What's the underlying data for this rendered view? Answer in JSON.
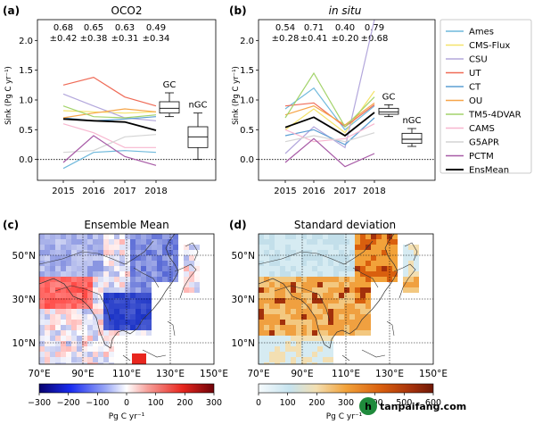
{
  "chart_data": [
    {
      "panel_label": "(a)",
      "title": "OCO2",
      "type": "line",
      "ylabel": "Sink (Pg C yr⁻¹)",
      "x": [
        2015,
        2016,
        2017,
        2018
      ],
      "ylim": [
        -0.35,
        2.35
      ],
      "yticks": [
        "0.0",
        "0.5",
        "1.0",
        "1.5",
        "2.0"
      ],
      "xticks": [
        "2015",
        "2016",
        "2017",
        "2018"
      ],
      "annotations_mean": [
        "0.68",
        "0.65",
        "0.63",
        "0.49"
      ],
      "annotations_sd": [
        "±0.42",
        "±0.38",
        "±0.31",
        "±0.34"
      ],
      "series": [
        {
          "name": "Ames",
          "color": "#6fb9dc",
          "values": [
            -0.15,
            0.12,
            0.15,
            0.12
          ]
        },
        {
          "name": "CMS-Flux",
          "color": "#f4e36a",
          "values": [
            0.82,
            0.8,
            0.78,
            0.8
          ]
        },
        {
          "name": "CSU",
          "color": "#b3a7dc",
          "values": [
            1.1,
            0.9,
            0.7,
            0.65
          ]
        },
        {
          "name": "UT",
          "color": "#ef6b57",
          "values": [
            1.25,
            1.38,
            1.05,
            0.9
          ]
        },
        {
          "name": "CT",
          "color": "#5b9fd4",
          "values": [
            0.7,
            0.65,
            0.68,
            0.72
          ]
        },
        {
          "name": "OU",
          "color": "#f6a54a",
          "values": [
            0.7,
            0.78,
            0.85,
            0.8
          ]
        },
        {
          "name": "TM5-4DVAR",
          "color": "#a3d36b",
          "values": [
            0.9,
            0.72,
            0.7,
            0.75
          ]
        },
        {
          "name": "CAMS",
          "color": "#f7b6cf",
          "values": [
            0.6,
            0.45,
            0.2,
            0.2
          ]
        },
        {
          "name": "G5APR",
          "color": "#d4d4d4",
          "values": [
            0.12,
            0.15,
            0.38,
            0.42
          ]
        },
        {
          "name": "PCTM",
          "color": "#a75aa6",
          "values": [
            -0.05,
            0.4,
            0.05,
            -0.1
          ]
        },
        {
          "name": "EnsMean",
          "color": "#000000",
          "values": [
            0.68,
            0.65,
            0.63,
            0.49
          ]
        }
      ],
      "boxes": [
        {
          "label": "GC",
          "min": 0.72,
          "q1": 0.78,
          "median": 0.86,
          "q3": 0.97,
          "max": 1.12
        },
        {
          "label": "nGC",
          "min": 0.0,
          "q1": 0.2,
          "median": 0.38,
          "q3": 0.55,
          "max": 0.78
        }
      ]
    },
    {
      "panel_label": "(b)",
      "title": "in situ",
      "type": "line",
      "ylabel": "Sink (Pg C yr⁻¹)",
      "x": [
        2015,
        2016,
        2017,
        2018
      ],
      "ylim": [
        -0.35,
        2.35
      ],
      "yticks": [
        "0.0",
        "0.5",
        "1.0",
        "1.5",
        "2.0"
      ],
      "xticks": [
        "2015",
        "2016",
        "2017",
        "2018"
      ],
      "annotations_mean": [
        "0.54",
        "0.71",
        "0.40",
        "0.79"
      ],
      "annotations_sd": [
        "±0.28",
        "±0.41",
        "±0.20",
        "±0.68"
      ],
      "series": [
        {
          "name": "Ames",
          "color": "#6fb9dc",
          "values": [
            0.85,
            1.2,
            0.5,
            0.9
          ]
        },
        {
          "name": "CMS-Flux",
          "color": "#f4e36a",
          "values": [
            0.5,
            0.85,
            0.45,
            1.15
          ]
        },
        {
          "name": "CSU",
          "color": "#b3a7dc",
          "values": [
            0.1,
            0.55,
            0.2,
            2.35
          ]
        },
        {
          "name": "UT",
          "color": "#ef6b57",
          "values": [
            0.9,
            0.95,
            0.55,
            0.92
          ]
        },
        {
          "name": "CT",
          "color": "#5b9fd4",
          "values": [
            0.4,
            0.5,
            0.25,
            0.7
          ]
        },
        {
          "name": "OU",
          "color": "#f6a54a",
          "values": [
            0.75,
            0.9,
            0.58,
            0.95
          ]
        },
        {
          "name": "TM5-4DVAR",
          "color": "#a3d36b",
          "values": [
            0.7,
            1.45,
            0.55,
            1.05
          ]
        },
        {
          "name": "CAMS",
          "color": "#f7b6cf",
          "values": [
            0.5,
            0.3,
            0.35,
            0.6
          ]
        },
        {
          "name": "G5APR",
          "color": "#d4d4d4",
          "values": [
            0.3,
            0.4,
            0.3,
            0.45
          ]
        },
        {
          "name": "PCTM",
          "color": "#a75aa6",
          "values": [
            -0.05,
            0.35,
            -0.12,
            0.1
          ]
        },
        {
          "name": "EnsMean",
          "color": "#000000",
          "values": [
            0.54,
            0.71,
            0.4,
            0.79
          ]
        }
      ],
      "boxes": [
        {
          "label": "GC",
          "min": 0.72,
          "q1": 0.76,
          "median": 0.8,
          "q3": 0.86,
          "max": 0.92
        },
        {
          "label": "nGC",
          "min": 0.22,
          "q1": 0.27,
          "median": 0.34,
          "q3": 0.44,
          "max": 0.52
        }
      ]
    },
    {
      "panel_label": "(c)",
      "title": "Ensemble Mean",
      "type": "heatmap",
      "xticks": [
        "70°E",
        "90°E",
        "110°E",
        "130°E",
        "150°E"
      ],
      "yticks": [
        "10°N",
        "30°N",
        "50°N"
      ],
      "colorbar_ticks": [
        "−300",
        "−200",
        "−100",
        "0",
        "100",
        "200",
        "300"
      ],
      "colorbar_label": "Pg C yr⁻¹"
    },
    {
      "panel_label": "(d)",
      "title": "Standard deviation",
      "type": "heatmap",
      "xticks": [
        "70°E",
        "90°E",
        "110°E",
        "130°E",
        "150°E"
      ],
      "yticks": [
        "10°N",
        "30°N",
        "50°N"
      ],
      "colorbar_ticks": [
        "0",
        "100",
        "200",
        "300",
        "400",
        "500",
        "600"
      ],
      "colorbar_label": "Pg C yr⁻¹"
    }
  ],
  "watermark": "tanpaifang.com"
}
